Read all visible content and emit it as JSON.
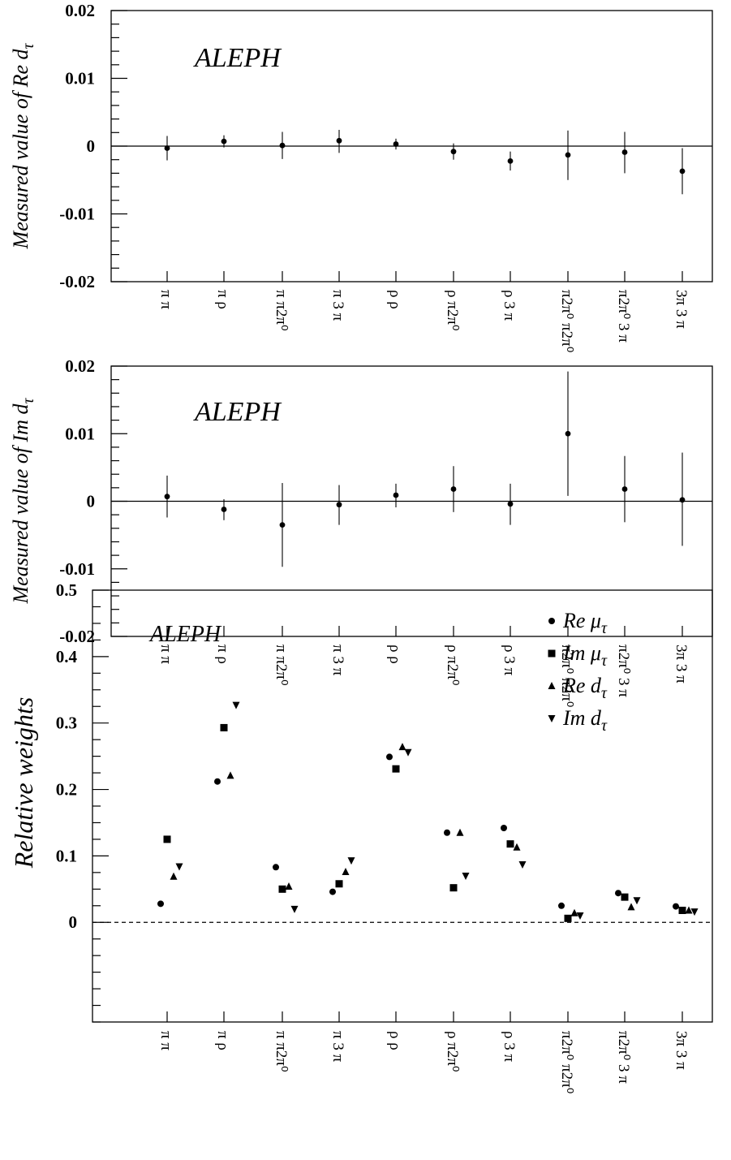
{
  "chart_data": [
    {
      "type": "scatter",
      "title": "ALEPH",
      "ylabel": "Measured value of Re d",
      "ylabel_sub": "τ",
      "ylim": [
        -0.02,
        0.02
      ],
      "yticks": [
        "0.02",
        "0.01",
        "0",
        "-0.01",
        "-0.02"
      ],
      "categories": [
        "π π",
        "π ρ",
        "π π2π⁰",
        "π 3 π",
        "ρ ρ",
        "ρ π2π⁰",
        "ρ 3 π",
        "π2π⁰ π2π⁰",
        "π2π⁰ 3 π",
        "3π 3 π"
      ],
      "values": [
        -0.0003,
        0.0007,
        0.0001,
        0.0008,
        0.0003,
        -0.0008,
        -0.0022,
        -0.0013,
        -0.0009,
        -0.0037
      ],
      "err_low": [
        -0.0021,
        -0.0002,
        -0.0019,
        -0.001,
        -0.0005,
        -0.002,
        -0.0036,
        -0.005,
        -0.004,
        -0.0071
      ],
      "err_high": [
        0.0015,
        0.0016,
        0.0021,
        0.0024,
        0.0011,
        0.0004,
        -0.0008,
        0.0023,
        0.0021,
        -0.0003
      ]
    },
    {
      "type": "scatter",
      "title": "ALEPH",
      "ylabel": "Measured value of Im d",
      "ylabel_sub": "τ",
      "ylim": [
        -0.02,
        0.02
      ],
      "yticks": [
        "0.02",
        "0.01",
        "0",
        "-0.01",
        "-0.02"
      ],
      "categories": [
        "π π",
        "π ρ",
        "π π2π⁰",
        "π 3 π",
        "ρ ρ",
        "ρ π2π⁰",
        "ρ 3 π",
        "π2π⁰ π2π⁰",
        "π2π⁰ 3 π",
        "3π 3 π"
      ],
      "values": [
        0.0007,
        -0.0012,
        -0.0035,
        -0.0005,
        0.0009,
        0.0018,
        -0.0004,
        0.01,
        0.0018,
        0.0002
      ],
      "err_low": [
        -0.0024,
        -0.0028,
        -0.0097,
        -0.0035,
        -0.0009,
        -0.0016,
        -0.0035,
        0.0008,
        -0.0031,
        -0.0066
      ],
      "err_high": [
        0.0038,
        0.0003,
        0.0027,
        0.0024,
        0.0026,
        0.0052,
        0.0026,
        0.0192,
        0.0067,
        0.0072
      ]
    },
    {
      "type": "scatter",
      "title": "ALEPH",
      "ylabel": "Relative weights",
      "ylim": [
        -0.15,
        0.5
      ],
      "yticks": [
        "0.5",
        "0.4",
        "0.3",
        "0.2",
        "0.1",
        "0"
      ],
      "categories": [
        "π π",
        "π ρ",
        "π π2π⁰",
        "π 3 π",
        "ρ ρ",
        "ρ π2π⁰",
        "ρ 3 π",
        "π2π⁰ π2π⁰",
        "π2π⁰ 3 π",
        "3π 3 π"
      ],
      "series": [
        {
          "name": "Re μ",
          "sub": "τ",
          "marker": "circle",
          "values": [
            0.028,
            0.212,
            0.083,
            0.046,
            0.249,
            0.135,
            0.142,
            0.025,
            0.044,
            0.024
          ]
        },
        {
          "name": "Im μ",
          "sub": "τ",
          "marker": "square",
          "values": [
            0.125,
            0.293,
            0.05,
            0.058,
            0.231,
            0.052,
            0.118,
            0.006,
            0.038,
            0.018
          ]
        },
        {
          "name": "Re d",
          "sub": "τ",
          "marker": "triangle-up",
          "values": [
            0.069,
            0.221,
            0.054,
            0.076,
            0.264,
            0.135,
            0.113,
            0.014,
            0.023,
            0.018
          ]
        },
        {
          "name": "Im d",
          "sub": "τ",
          "marker": "triangle-down",
          "values": [
            0.084,
            0.327,
            0.02,
            0.093,
            0.256,
            0.07,
            0.087,
            0.01,
            0.033,
            0.016
          ]
        }
      ]
    }
  ]
}
